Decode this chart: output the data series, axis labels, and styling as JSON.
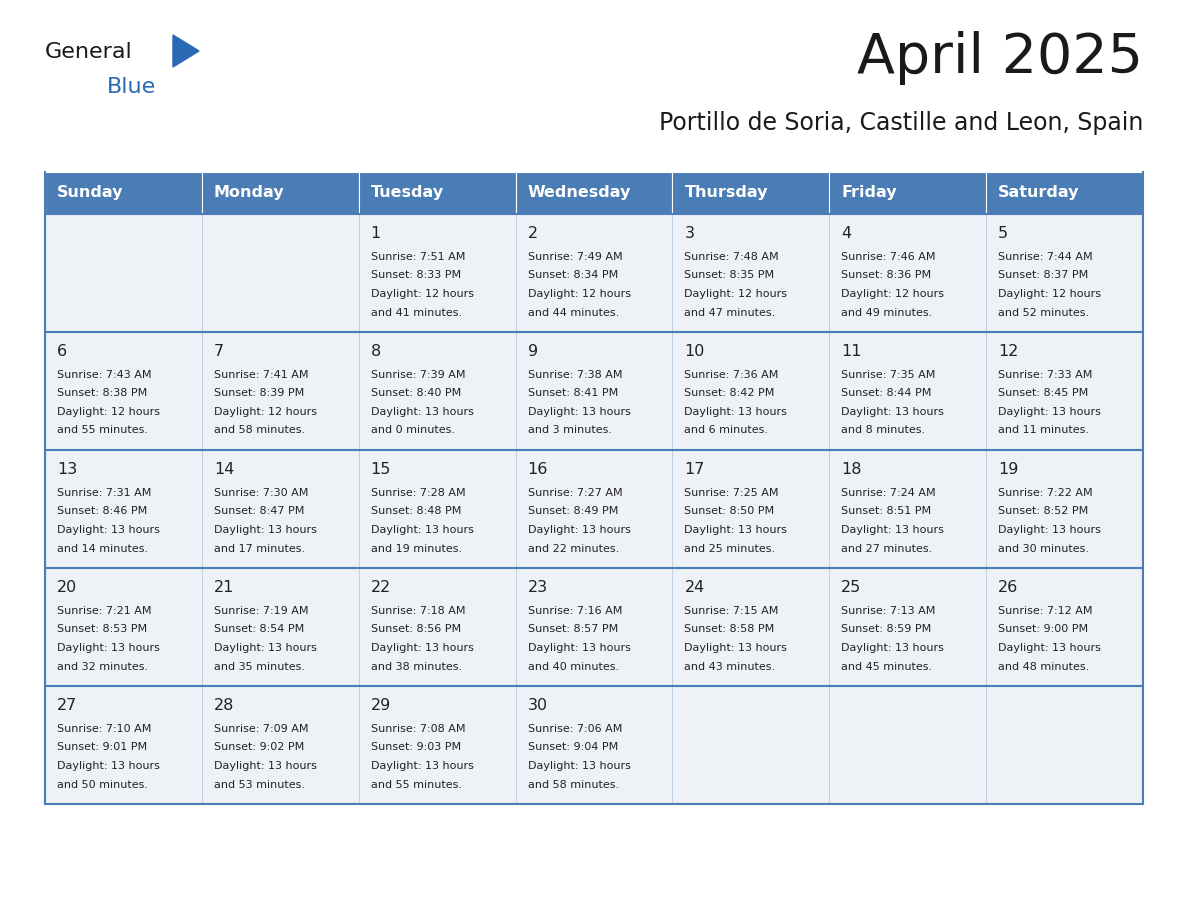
{
  "title": "April 2025",
  "subtitle": "Portillo de Soria, Castille and Leon, Spain",
  "header_bg_color": "#4a7cb5",
  "header_text_color": "#ffffff",
  "day_names": [
    "Sunday",
    "Monday",
    "Tuesday",
    "Wednesday",
    "Thursday",
    "Friday",
    "Saturday"
  ],
  "cell_bg_color": "#eef2f7",
  "cell_border_color": "#4a7cb5",
  "row_border_color": "#4a7cb5",
  "text_color": "#222222",
  "title_color": "#1a1a1a",
  "subtitle_color": "#1a1a1a",
  "logo_general_color": "#1a1a1a",
  "logo_blue_color": "#2a6ab5",
  "days": [
    {
      "day": null,
      "sunrise": null,
      "sunset": null,
      "daylight": null
    },
    {
      "day": null,
      "sunrise": null,
      "sunset": null,
      "daylight": null
    },
    {
      "day": 1,
      "sunrise": "7:51 AM",
      "sunset": "8:33 PM",
      "daylight": "12 hours and 41 minutes."
    },
    {
      "day": 2,
      "sunrise": "7:49 AM",
      "sunset": "8:34 PM",
      "daylight": "12 hours and 44 minutes."
    },
    {
      "day": 3,
      "sunrise": "7:48 AM",
      "sunset": "8:35 PM",
      "daylight": "12 hours and 47 minutes."
    },
    {
      "day": 4,
      "sunrise": "7:46 AM",
      "sunset": "8:36 PM",
      "daylight": "12 hours and 49 minutes."
    },
    {
      "day": 5,
      "sunrise": "7:44 AM",
      "sunset": "8:37 PM",
      "daylight": "12 hours and 52 minutes."
    },
    {
      "day": 6,
      "sunrise": "7:43 AM",
      "sunset": "8:38 PM",
      "daylight": "12 hours and 55 minutes."
    },
    {
      "day": 7,
      "sunrise": "7:41 AM",
      "sunset": "8:39 PM",
      "daylight": "12 hours and 58 minutes."
    },
    {
      "day": 8,
      "sunrise": "7:39 AM",
      "sunset": "8:40 PM",
      "daylight": "13 hours and 0 minutes."
    },
    {
      "day": 9,
      "sunrise": "7:38 AM",
      "sunset": "8:41 PM",
      "daylight": "13 hours and 3 minutes."
    },
    {
      "day": 10,
      "sunrise": "7:36 AM",
      "sunset": "8:42 PM",
      "daylight": "13 hours and 6 minutes."
    },
    {
      "day": 11,
      "sunrise": "7:35 AM",
      "sunset": "8:44 PM",
      "daylight": "13 hours and 8 minutes."
    },
    {
      "day": 12,
      "sunrise": "7:33 AM",
      "sunset": "8:45 PM",
      "daylight": "13 hours and 11 minutes."
    },
    {
      "day": 13,
      "sunrise": "7:31 AM",
      "sunset": "8:46 PM",
      "daylight": "13 hours and 14 minutes."
    },
    {
      "day": 14,
      "sunrise": "7:30 AM",
      "sunset": "8:47 PM",
      "daylight": "13 hours and 17 minutes."
    },
    {
      "day": 15,
      "sunrise": "7:28 AM",
      "sunset": "8:48 PM",
      "daylight": "13 hours and 19 minutes."
    },
    {
      "day": 16,
      "sunrise": "7:27 AM",
      "sunset": "8:49 PM",
      "daylight": "13 hours and 22 minutes."
    },
    {
      "day": 17,
      "sunrise": "7:25 AM",
      "sunset": "8:50 PM",
      "daylight": "13 hours and 25 minutes."
    },
    {
      "day": 18,
      "sunrise": "7:24 AM",
      "sunset": "8:51 PM",
      "daylight": "13 hours and 27 minutes."
    },
    {
      "day": 19,
      "sunrise": "7:22 AM",
      "sunset": "8:52 PM",
      "daylight": "13 hours and 30 minutes."
    },
    {
      "day": 20,
      "sunrise": "7:21 AM",
      "sunset": "8:53 PM",
      "daylight": "13 hours and 32 minutes."
    },
    {
      "day": 21,
      "sunrise": "7:19 AM",
      "sunset": "8:54 PM",
      "daylight": "13 hours and 35 minutes."
    },
    {
      "day": 22,
      "sunrise": "7:18 AM",
      "sunset": "8:56 PM",
      "daylight": "13 hours and 38 minutes."
    },
    {
      "day": 23,
      "sunrise": "7:16 AM",
      "sunset": "8:57 PM",
      "daylight": "13 hours and 40 minutes."
    },
    {
      "day": 24,
      "sunrise": "7:15 AM",
      "sunset": "8:58 PM",
      "daylight": "13 hours and 43 minutes."
    },
    {
      "day": 25,
      "sunrise": "7:13 AM",
      "sunset": "8:59 PM",
      "daylight": "13 hours and 45 minutes."
    },
    {
      "day": 26,
      "sunrise": "7:12 AM",
      "sunset": "9:00 PM",
      "daylight": "13 hours and 48 minutes."
    },
    {
      "day": 27,
      "sunrise": "7:10 AM",
      "sunset": "9:01 PM",
      "daylight": "13 hours and 50 minutes."
    },
    {
      "day": 28,
      "sunrise": "7:09 AM",
      "sunset": "9:02 PM",
      "daylight": "13 hours and 53 minutes."
    },
    {
      "day": 29,
      "sunrise": "7:08 AM",
      "sunset": "9:03 PM",
      "daylight": "13 hours and 55 minutes."
    },
    {
      "day": 30,
      "sunrise": "7:06 AM",
      "sunset": "9:04 PM",
      "daylight": "13 hours and 58 minutes."
    },
    {
      "day": null,
      "sunrise": null,
      "sunset": null,
      "daylight": null
    },
    {
      "day": null,
      "sunrise": null,
      "sunset": null,
      "daylight": null
    },
    {
      "day": null,
      "sunrise": null,
      "sunset": null,
      "daylight": null
    }
  ]
}
